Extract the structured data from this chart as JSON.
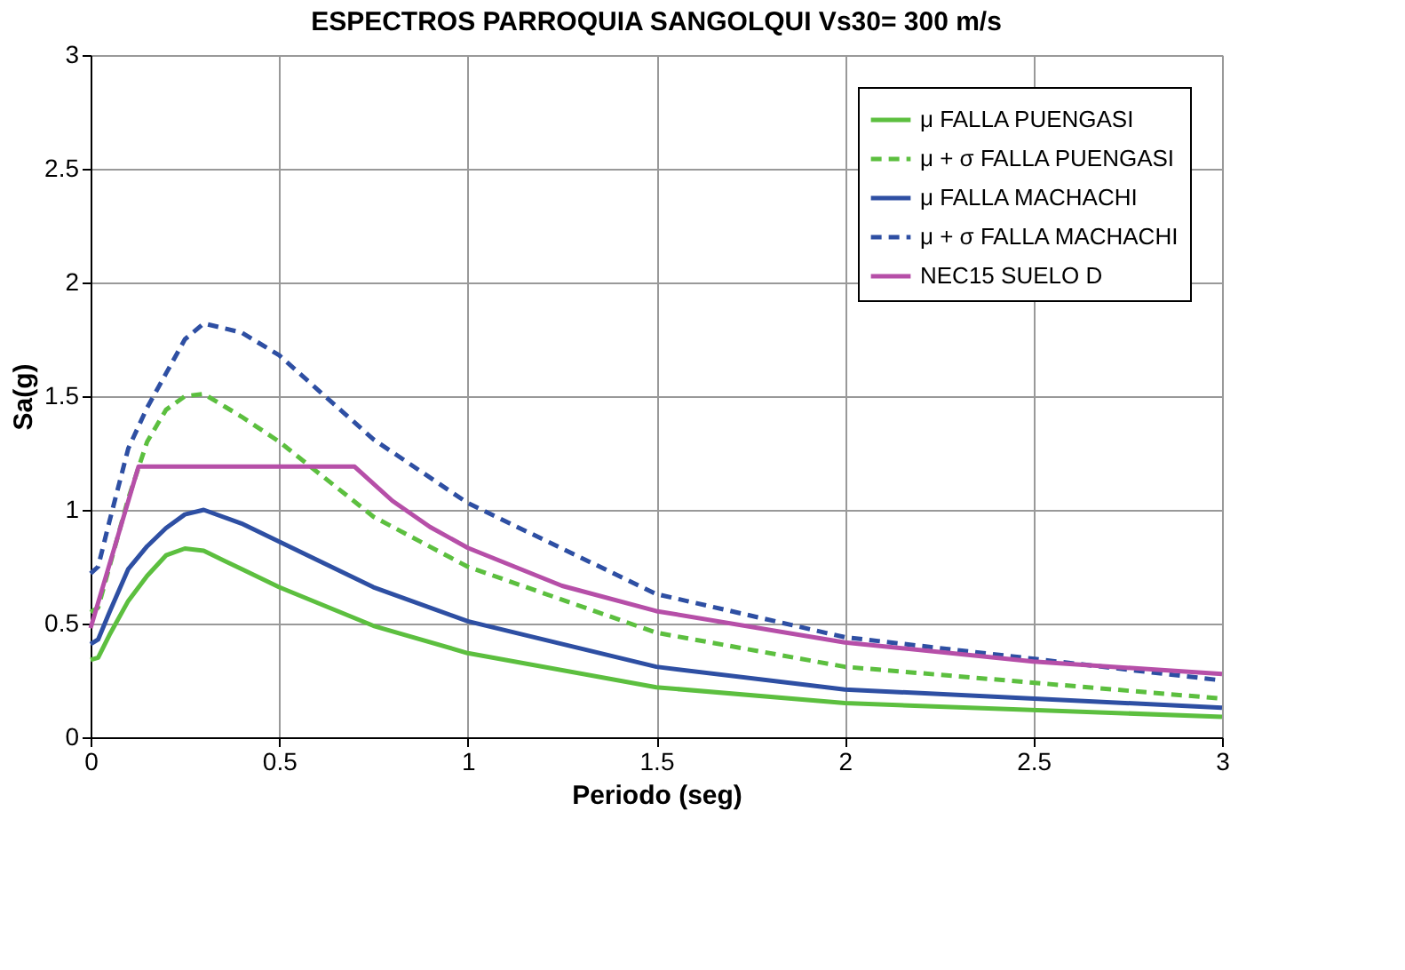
{
  "chart_data": {
    "type": "line",
    "title": "ESPECTROS PARROQUIA SANGOLQUI Vs30= 300 m/s",
    "xlabel": "Periodo (seg)",
    "ylabel": "Sa(g)",
    "xlim": [
      0,
      3
    ],
    "xticks": [
      0,
      0.5,
      1,
      1.5,
      2,
      2.5,
      3
    ],
    "ylim": [
      0,
      3
    ],
    "yticks": [
      0,
      0.5,
      1,
      1.5,
      2,
      2.5,
      3
    ],
    "grid": true,
    "legend": "top right",
    "series": [
      {
        "name": "μ FALLA PUENGASI",
        "color": "#5cbf3f",
        "line_style": "solid",
        "x": [
          0,
          0.02,
          0.05,
          0.1,
          0.15,
          0.2,
          0.25,
          0.3,
          0.4,
          0.5,
          0.75,
          1,
          1.5,
          2,
          3
        ],
        "values": [
          0.34,
          0.35,
          0.45,
          0.6,
          0.71,
          0.8,
          0.83,
          0.82,
          0.74,
          0.66,
          0.49,
          0.37,
          0.22,
          0.15,
          0.09
        ]
      },
      {
        "name": "μ + σ FALLA PUENGASI",
        "color": "#5cbf3f",
        "line_style": "dashed",
        "x": [
          0,
          0.02,
          0.05,
          0.1,
          0.15,
          0.2,
          0.25,
          0.3,
          0.4,
          0.5,
          0.75,
          1,
          1.5,
          2,
          3
        ],
        "values": [
          0.55,
          0.57,
          0.75,
          1.05,
          1.3,
          1.44,
          1.5,
          1.51,
          1.41,
          1.3,
          0.97,
          0.75,
          0.46,
          0.31,
          0.17
        ]
      },
      {
        "name": "μ FALLA MACHACHI",
        "color": "#2e4fa3",
        "line_style": "solid",
        "x": [
          0,
          0.02,
          0.05,
          0.1,
          0.15,
          0.2,
          0.25,
          0.3,
          0.4,
          0.5,
          0.75,
          1,
          1.5,
          2,
          3
        ],
        "values": [
          0.41,
          0.43,
          0.55,
          0.74,
          0.84,
          0.92,
          0.98,
          1.0,
          0.94,
          0.86,
          0.66,
          0.51,
          0.31,
          0.21,
          0.13
        ]
      },
      {
        "name": "μ + σ FALLA MACHACHI",
        "color": "#2e4fa3",
        "line_style": "dashed",
        "x": [
          0,
          0.02,
          0.05,
          0.1,
          0.15,
          0.2,
          0.25,
          0.3,
          0.4,
          0.5,
          0.75,
          1,
          1.5,
          2,
          3
        ],
        "values": [
          0.72,
          0.75,
          0.95,
          1.27,
          1.45,
          1.6,
          1.75,
          1.82,
          1.78,
          1.68,
          1.31,
          1.03,
          0.63,
          0.44,
          0.25
        ]
      },
      {
        "name": "NEC15 SUELO D",
        "color": "#b64fa8",
        "line_style": "solid",
        "x": [
          0,
          0.127,
          0.7,
          0.8,
          0.9,
          1,
          1.25,
          1.5,
          2,
          2.5,
          3
        ],
        "values": [
          0.48,
          1.19,
          1.19,
          1.04,
          0.925,
          0.833,
          0.666,
          0.555,
          0.417,
          0.333,
          0.278
        ]
      }
    ]
  }
}
